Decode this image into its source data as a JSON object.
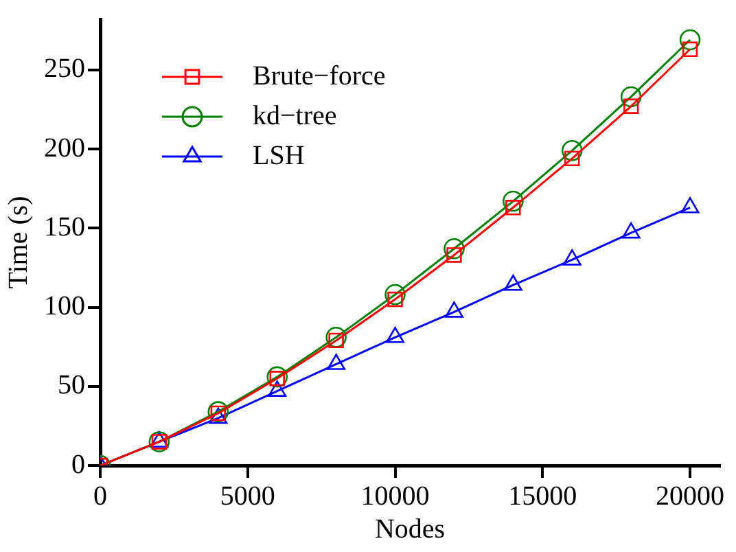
{
  "chart_data": {
    "type": "line",
    "xlabel": "Nodes",
    "ylabel": "Time (s)",
    "x": [
      0,
      2000,
      4000,
      6000,
      8000,
      10000,
      12000,
      14000,
      16000,
      18000,
      20000
    ],
    "xlim": [
      0,
      21000
    ],
    "xticks": [
      0,
      5000,
      10000,
      15000,
      20000
    ],
    "ylim": [
      0,
      282
    ],
    "yticks": [
      0,
      50,
      100,
      150,
      200,
      250
    ],
    "grid": false,
    "legend": "top left",
    "line_style": "solid",
    "series": [
      {
        "name": "Brute−force",
        "color": "#ff0000",
        "marker": "square",
        "values": [
          0,
          15,
          33,
          55,
          79,
          105,
          133,
          163,
          194,
          227,
          263
        ]
      },
      {
        "name": "kd−tree",
        "color": "#008000",
        "marker": "circle",
        "values": [
          0,
          15,
          34,
          56,
          81,
          108,
          137,
          167,
          199,
          233,
          269
        ]
      },
      {
        "name": "LSH",
        "color": "#0000ff",
        "marker": "triangle",
        "values": [
          0,
          15,
          30,
          47,
          64,
          81,
          97,
          114,
          130,
          147,
          163
        ]
      }
    ]
  }
}
